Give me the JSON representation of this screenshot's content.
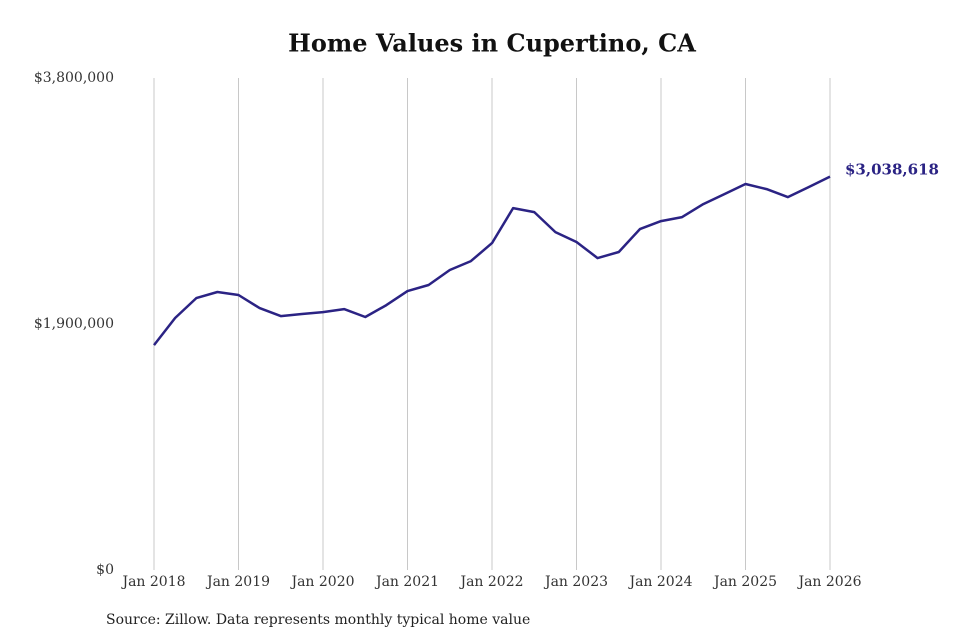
{
  "chart_data": {
    "type": "line",
    "title": "Home Values in Cupertino, CA",
    "source": "Source: Zillow. Data represents monthly typical home value",
    "x": [
      "2018-01",
      "2018-04",
      "2018-07",
      "2018-10",
      "2019-01",
      "2019-04",
      "2019-07",
      "2019-10",
      "2020-01",
      "2020-04",
      "2020-07",
      "2020-10",
      "2021-01",
      "2021-04",
      "2021-07",
      "2021-10",
      "2022-01",
      "2022-04",
      "2022-07",
      "2022-10",
      "2023-01",
      "2023-04",
      "2023-07",
      "2023-10",
      "2024-01",
      "2024-04",
      "2024-07",
      "2024-10",
      "2025-01",
      "2025-04",
      "2025-07",
      "2025-10",
      "2026-01"
    ],
    "series": [
      {
        "name": "Home value",
        "color": "#2b2384",
        "values": [
          1737000,
          1946000,
          2100000,
          2147000,
          2124000,
          2023000,
          1961000,
          1977000,
          1992000,
          2015000,
          1954000,
          2046000,
          2154000,
          2201000,
          2317000,
          2386000,
          2525000,
          2795000,
          2764000,
          2610000,
          2533000,
          2409000,
          2456000,
          2633000,
          2695000,
          2726000,
          2826000,
          2903000,
          2981000,
          2942000,
          2880000,
          2958000,
          3038618
        ],
        "value_labels": [
          null,
          null,
          null,
          null,
          null,
          null,
          null,
          null,
          null,
          null,
          null,
          null,
          null,
          null,
          null,
          null,
          null,
          null,
          null,
          null,
          null,
          null,
          null,
          null,
          null,
          null,
          null,
          null,
          null,
          null,
          null,
          null,
          "$3,038,618"
        ]
      }
    ],
    "xlim": [
      "2018-01",
      "2026-01"
    ],
    "xticks": [
      {
        "value": "2018-01",
        "label": "Jan 2018"
      },
      {
        "value": "2019-01",
        "label": "Jan 2019"
      },
      {
        "value": "2020-01",
        "label": "Jan 2020"
      },
      {
        "value": "2021-01",
        "label": "Jan 2021"
      },
      {
        "value": "2022-01",
        "label": "Jan 2022"
      },
      {
        "value": "2023-01",
        "label": "Jan 2023"
      },
      {
        "value": "2024-01",
        "label": "Jan 2024"
      },
      {
        "value": "2025-01",
        "label": "Jan 2025"
      },
      {
        "value": "2026-01",
        "label": "Jan 2026"
      }
    ],
    "ylim": [
      0,
      3800000
    ],
    "yticks": [
      {
        "value": 0,
        "label": "$0"
      },
      {
        "value": 1900000,
        "label": "$1,900,000"
      },
      {
        "value": 3800000,
        "label": "$3,800,000"
      }
    ],
    "grid": "x"
  }
}
